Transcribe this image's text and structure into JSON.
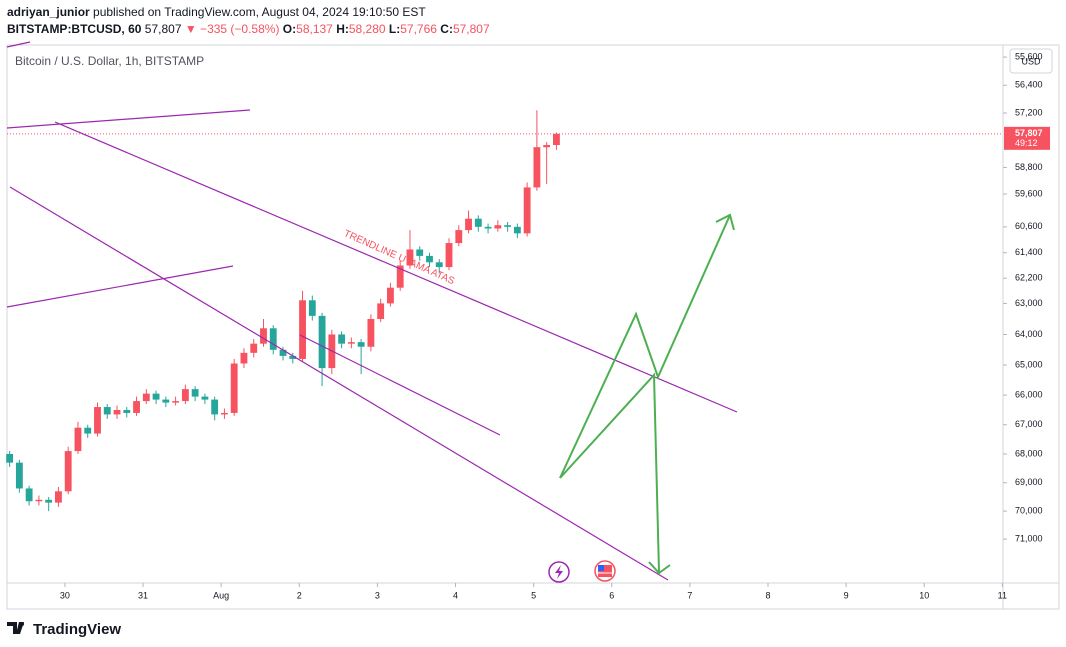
{
  "header": {
    "author": "adriyan_junior",
    "published": "published on TradingView.com, August 04, 2024 19:10:50 EST",
    "symbol": "BITSTAMP:BTCUSD, 60",
    "last": "57,807",
    "change": "▼ −335 (−0.58%)",
    "open_label": "O:",
    "open": "58,137",
    "high_label": "H:",
    "high": "58,280",
    "low_label": "L:",
    "low": "57,766",
    "close_label": "C:",
    "close": "57,807"
  },
  "footer": {
    "brand": "TradingView"
  },
  "chart_data": {
    "type": "candlestick",
    "title": "Bitcoin / U.S. Dollar, 1h, BITSTAMP",
    "currency": "USD",
    "annotation": "TRENDLINE UTAMA ATAS",
    "price_label": "57,807",
    "countdown": "49:12",
    "up_color": "#26a69a",
    "down_color": "#f7525f",
    "log_scale": true,
    "grid": false,
    "xlim": [
      -17.8,
      288.2
    ],
    "xticks": [
      {
        "value": 0,
        "label": "30"
      },
      {
        "value": 24,
        "label": "31"
      },
      {
        "value": 48,
        "label": "Aug"
      },
      {
        "value": 72,
        "label": "2"
      },
      {
        "value": 96,
        "label": "3"
      },
      {
        "value": 120,
        "label": "4"
      },
      {
        "value": 144,
        "label": "5"
      },
      {
        "value": 168,
        "label": "6"
      },
      {
        "value": 192,
        "label": "7"
      },
      {
        "value": 216,
        "label": "8"
      },
      {
        "value": 240,
        "label": "9"
      },
      {
        "value": 264,
        "label": "10"
      },
      {
        "value": 288,
        "label": "11"
      }
    ],
    "ylim": [
      55260,
      72600
    ],
    "yticks": [
      {
        "value": 71000,
        "label": "71,000"
      },
      {
        "value": 70000,
        "label": "70,000"
      },
      {
        "value": 69000,
        "label": "69,000"
      },
      {
        "value": 68000,
        "label": "68,000"
      },
      {
        "value": 67000,
        "label": "67,000"
      },
      {
        "value": 66000,
        "label": "66,000"
      },
      {
        "value": 65000,
        "label": "65,000"
      },
      {
        "value": 64000,
        "label": "64,000"
      },
      {
        "value": 63000,
        "label": "63,000"
      },
      {
        "value": 62200,
        "label": "62,200"
      },
      {
        "value": 61400,
        "label": "61,400"
      },
      {
        "value": 60600,
        "label": "60,600"
      },
      {
        "value": 59600,
        "label": "59,600"
      },
      {
        "value": 58800,
        "label": "58,800"
      },
      {
        "value": 57200,
        "label": "57,200"
      },
      {
        "value": 56400,
        "label": "56,400"
      },
      {
        "value": 55600,
        "label": "55,600"
      }
    ],
    "candles": [
      {
        "x": -17,
        "open": 68000,
        "high": 68450,
        "low": 67900,
        "close": 68300
      },
      {
        "x": -14,
        "open": 68300,
        "high": 69350,
        "low": 68200,
        "close": 69200
      },
      {
        "x": -11,
        "open": 69200,
        "high": 69800,
        "low": 69100,
        "close": 69650
      },
      {
        "x": -8,
        "open": 69650,
        "high": 69800,
        "low": 69450,
        "close": 69600
      },
      {
        "x": -5,
        "open": 69600,
        "high": 70000,
        "low": 69500,
        "close": 69700
      },
      {
        "x": -2,
        "open": 69700,
        "high": 69850,
        "low": 69150,
        "close": 69300
      },
      {
        "x": 1,
        "open": 69300,
        "high": 69400,
        "low": 67750,
        "close": 67900
      },
      {
        "x": 4,
        "open": 67900,
        "high": 68000,
        "low": 66900,
        "close": 67100
      },
      {
        "x": 7,
        "open": 67100,
        "high": 67450,
        "low": 67000,
        "close": 67300
      },
      {
        "x": 10,
        "open": 67300,
        "high": 67400,
        "low": 66250,
        "close": 66400
      },
      {
        "x": 13,
        "open": 66400,
        "high": 66800,
        "low": 66300,
        "close": 66650
      },
      {
        "x": 16,
        "open": 66650,
        "high": 66800,
        "low": 66350,
        "close": 66500
      },
      {
        "x": 19,
        "open": 66500,
        "high": 66750,
        "low": 66400,
        "close": 66600
      },
      {
        "x": 22,
        "open": 66600,
        "high": 66700,
        "low": 66050,
        "close": 66200
      },
      {
        "x": 25,
        "open": 66200,
        "high": 66300,
        "low": 65800,
        "close": 65950
      },
      {
        "x": 28,
        "open": 65950,
        "high": 66300,
        "low": 65850,
        "close": 66150
      },
      {
        "x": 31,
        "open": 66150,
        "high": 66400,
        "low": 66050,
        "close": 66250
      },
      {
        "x": 34,
        "open": 66250,
        "high": 66350,
        "low": 66050,
        "close": 66200
      },
      {
        "x": 37,
        "open": 66200,
        "high": 66300,
        "low": 65650,
        "close": 65800
      },
      {
        "x": 40,
        "open": 65800,
        "high": 66200,
        "low": 65700,
        "close": 66050
      },
      {
        "x": 43,
        "open": 66050,
        "high": 66300,
        "low": 65950,
        "close": 66150
      },
      {
        "x": 46,
        "open": 66150,
        "high": 66850,
        "low": 66050,
        "close": 66650
      },
      {
        "x": 49,
        "open": 66650,
        "high": 66800,
        "low": 66450,
        "close": 66600
      },
      {
        "x": 52,
        "open": 66600,
        "high": 66700,
        "low": 64800,
        "close": 64950
      },
      {
        "x": 55,
        "open": 64950,
        "high": 65100,
        "low": 64450,
        "close": 64600
      },
      {
        "x": 58,
        "open": 64600,
        "high": 64750,
        "low": 64150,
        "close": 64300
      },
      {
        "x": 61,
        "open": 64300,
        "high": 64400,
        "low": 63500,
        "close": 63800
      },
      {
        "x": 64,
        "open": 63800,
        "high": 64650,
        "low": 63700,
        "close": 64500
      },
      {
        "x": 67,
        "open": 64500,
        "high": 64850,
        "low": 64400,
        "close": 64700
      },
      {
        "x": 70,
        "open": 64700,
        "high": 64950,
        "low": 64600,
        "close": 64800
      },
      {
        "x": 73,
        "open": 64800,
        "high": 64900,
        "low": 62600,
        "close": 62900
      },
      {
        "x": 76,
        "open": 62900,
        "high": 63550,
        "low": 62750,
        "close": 63400
      },
      {
        "x": 79,
        "open": 63400,
        "high": 65700,
        "low": 63300,
        "close": 65100
      },
      {
        "x": 82,
        "open": 65100,
        "high": 65300,
        "low": 63850,
        "close": 64000
      },
      {
        "x": 85,
        "open": 64000,
        "high": 64450,
        "low": 63900,
        "close": 64300
      },
      {
        "x": 88,
        "open": 64300,
        "high": 64450,
        "low": 64100,
        "close": 64250
      },
      {
        "x": 91,
        "open": 64250,
        "high": 65300,
        "low": 64150,
        "close": 64400
      },
      {
        "x": 94,
        "open": 64400,
        "high": 64550,
        "low": 63350,
        "close": 63500
      },
      {
        "x": 97,
        "open": 63500,
        "high": 63600,
        "low": 62850,
        "close": 63000
      },
      {
        "x": 100,
        "open": 63000,
        "high": 63100,
        "low": 62350,
        "close": 62500
      },
      {
        "x": 103,
        "open": 62500,
        "high": 62600,
        "low": 61650,
        "close": 61800
      },
      {
        "x": 106,
        "open": 61800,
        "high": 61900,
        "low": 60700,
        "close": 61300
      },
      {
        "x": 109,
        "open": 61300,
        "high": 61650,
        "low": 61200,
        "close": 61500
      },
      {
        "x": 112,
        "open": 61500,
        "high": 61850,
        "low": 61400,
        "close": 61700
      },
      {
        "x": 115,
        "open": 61700,
        "high": 62050,
        "low": 61600,
        "close": 61850
      },
      {
        "x": 118,
        "open": 61850,
        "high": 61950,
        "low": 60950,
        "close": 61100
      },
      {
        "x": 121,
        "open": 61100,
        "high": 61200,
        "low": 60550,
        "close": 60700
      },
      {
        "x": 124,
        "open": 60700,
        "high": 60800,
        "low": 60100,
        "close": 60350
      },
      {
        "x": 127,
        "open": 60350,
        "high": 60750,
        "low": 60250,
        "close": 60600
      },
      {
        "x": 130,
        "open": 60600,
        "high": 60800,
        "low": 60500,
        "close": 60650
      },
      {
        "x": 133,
        "open": 60650,
        "high": 60750,
        "low": 60400,
        "close": 60550
      },
      {
        "x": 136,
        "open": 60550,
        "high": 60750,
        "low": 60450,
        "close": 60600
      },
      {
        "x": 139,
        "open": 60600,
        "high": 60950,
        "low": 60500,
        "close": 60800
      },
      {
        "x": 142,
        "open": 60800,
        "high": 60900,
        "low": 59250,
        "close": 59400
      },
      {
        "x": 145,
        "open": 59400,
        "high": 59500,
        "low": 57120,
        "close": 58200
      },
      {
        "x": 148,
        "open": 58200,
        "high": 59300,
        "low": 58050,
        "close": 58137
      },
      {
        "x": 151,
        "open": 58137,
        "high": 58280,
        "low": 57766,
        "close": 57807
      }
    ]
  }
}
